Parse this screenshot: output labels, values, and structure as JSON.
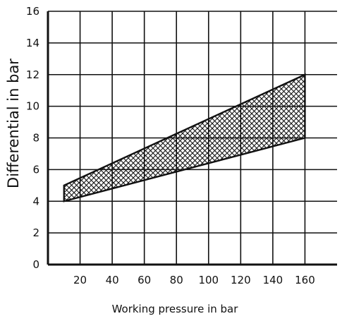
{
  "chart_data": {
    "type": "area",
    "title": "",
    "xlabel": "Working pressure in bar",
    "ylabel": "Differential in bar",
    "xlim": [
      0,
      180
    ],
    "ylim": [
      0,
      16
    ],
    "grid": true,
    "x_ticks": [
      20,
      40,
      60,
      80,
      100,
      120,
      140,
      160
    ],
    "y_ticks": [
      0,
      2,
      4,
      6,
      8,
      10,
      12,
      14,
      16
    ],
    "band": {
      "fill": "crosshatch",
      "upper": [
        {
          "x": 10,
          "y": 5
        },
        {
          "x": 160,
          "y": 12
        }
      ],
      "lower": [
        {
          "x": 10,
          "y": 4
        },
        {
          "x": 160,
          "y": 8
        }
      ]
    }
  },
  "colors": {
    "line": "#111111",
    "grid": "#111111",
    "background": "#ffffff"
  }
}
